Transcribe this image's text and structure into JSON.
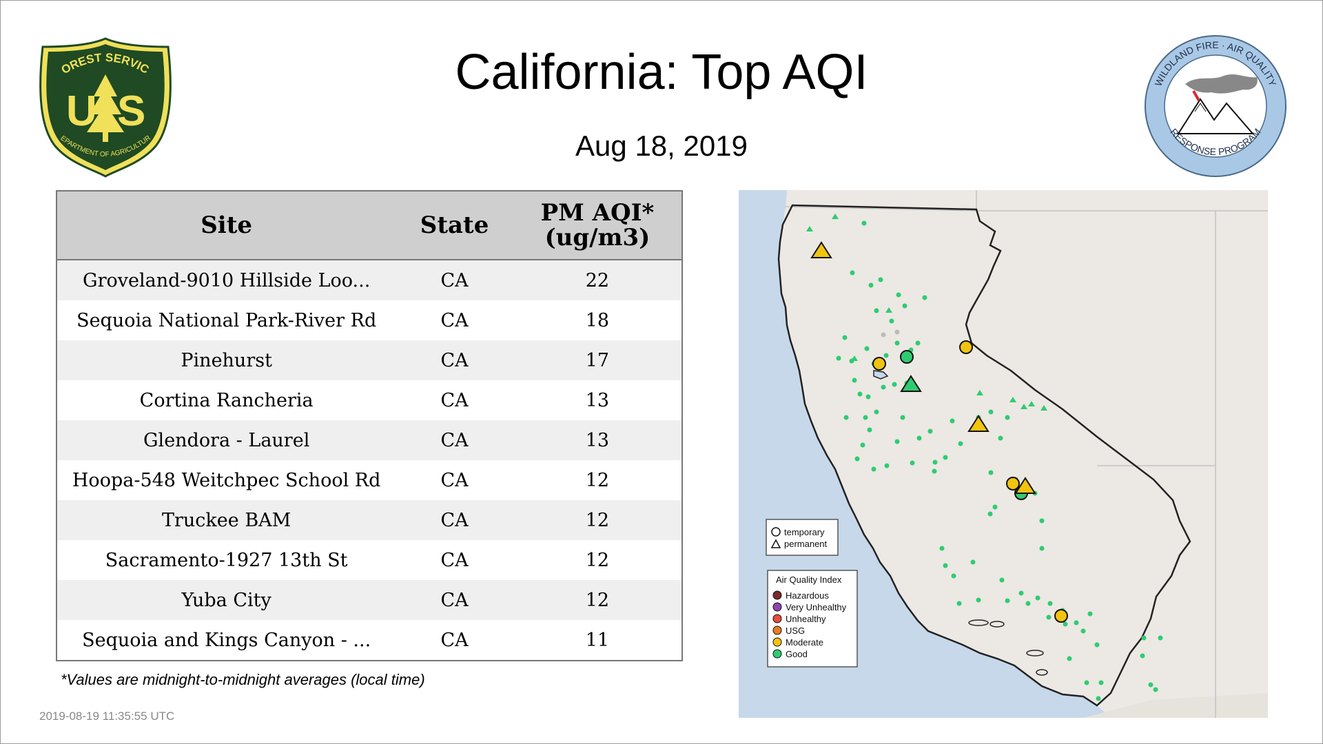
{
  "header": {
    "title": "California: Top AQI",
    "date": "Aug 18, 2019"
  },
  "logos": {
    "forest_service": {
      "icon": "usfs-shield-icon",
      "top_text": "FOREST SERVICE",
      "letter_left": "U",
      "letter_right": "S",
      "bottom_text": "DEPARTMENT OF AGRICULTURE",
      "colors": {
        "green": "#1f4a23",
        "gold": "#f0e05a"
      }
    },
    "wildland_fire": {
      "icon": "wildland-fire-air-quality-seal-icon",
      "top_text": "WILDLAND FIRE · AIR QUALITY",
      "bottom_text": "RESPONSE PROGRAM",
      "colors": {
        "ring": "#a9c8e6"
      }
    }
  },
  "table": {
    "headers": {
      "site": "Site",
      "state": "State",
      "value_line1": "PM AQI*",
      "value_line2": "(ug/m3)"
    },
    "rows": [
      {
        "site": "Groveland-9010 Hillside Loo...",
        "state": "CA",
        "value": "22"
      },
      {
        "site": "Sequoia National Park-River Rd",
        "state": "CA",
        "value": "18"
      },
      {
        "site": "Pinehurst",
        "state": "CA",
        "value": "17"
      },
      {
        "site": "Cortina Rancheria",
        "state": "CA",
        "value": "13"
      },
      {
        "site": "Glendora - Laurel",
        "state": "CA",
        "value": "13"
      },
      {
        "site": "Hoopa-548 Weitchpec School Rd",
        "state": "CA",
        "value": "12"
      },
      {
        "site": "Truckee BAM",
        "state": "CA",
        "value": "12"
      },
      {
        "site": "Sacramento-1927 13th St",
        "state": "CA",
        "value": "12"
      },
      {
        "site": "Yuba City",
        "state": "CA",
        "value": "12"
      },
      {
        "site": "Sequoia and Kings Canyon - ...",
        "state": "CA",
        "value": "11"
      }
    ]
  },
  "footnote": "*Values are midnight-to-midnight averages (local time)",
  "timestamp": "2019-08-19 11:35:55 UTC",
  "map": {
    "colors": {
      "ocean": "#c6d8ea",
      "land": "#ece8e4",
      "state_border": "#222222",
      "good": "#2ecc71",
      "moderate": "#f1c40f"
    },
    "shape_legend": {
      "temporary": "temporary",
      "permanent": "permanent"
    },
    "aqi_legend": {
      "title": "Air Quality Index",
      "items": [
        {
          "label": "Hazardous",
          "color": "#7a2a2a"
        },
        {
          "label": "Very Unhealthy",
          "color": "#8e44ad"
        },
        {
          "label": "Unhealthy",
          "color": "#e74c3c"
        },
        {
          "label": "USG",
          "color": "#e67e22"
        },
        {
          "label": "Moderate",
          "color": "#f1c40f"
        },
        {
          "label": "Good",
          "color": "#2ecc71"
        }
      ]
    }
  }
}
